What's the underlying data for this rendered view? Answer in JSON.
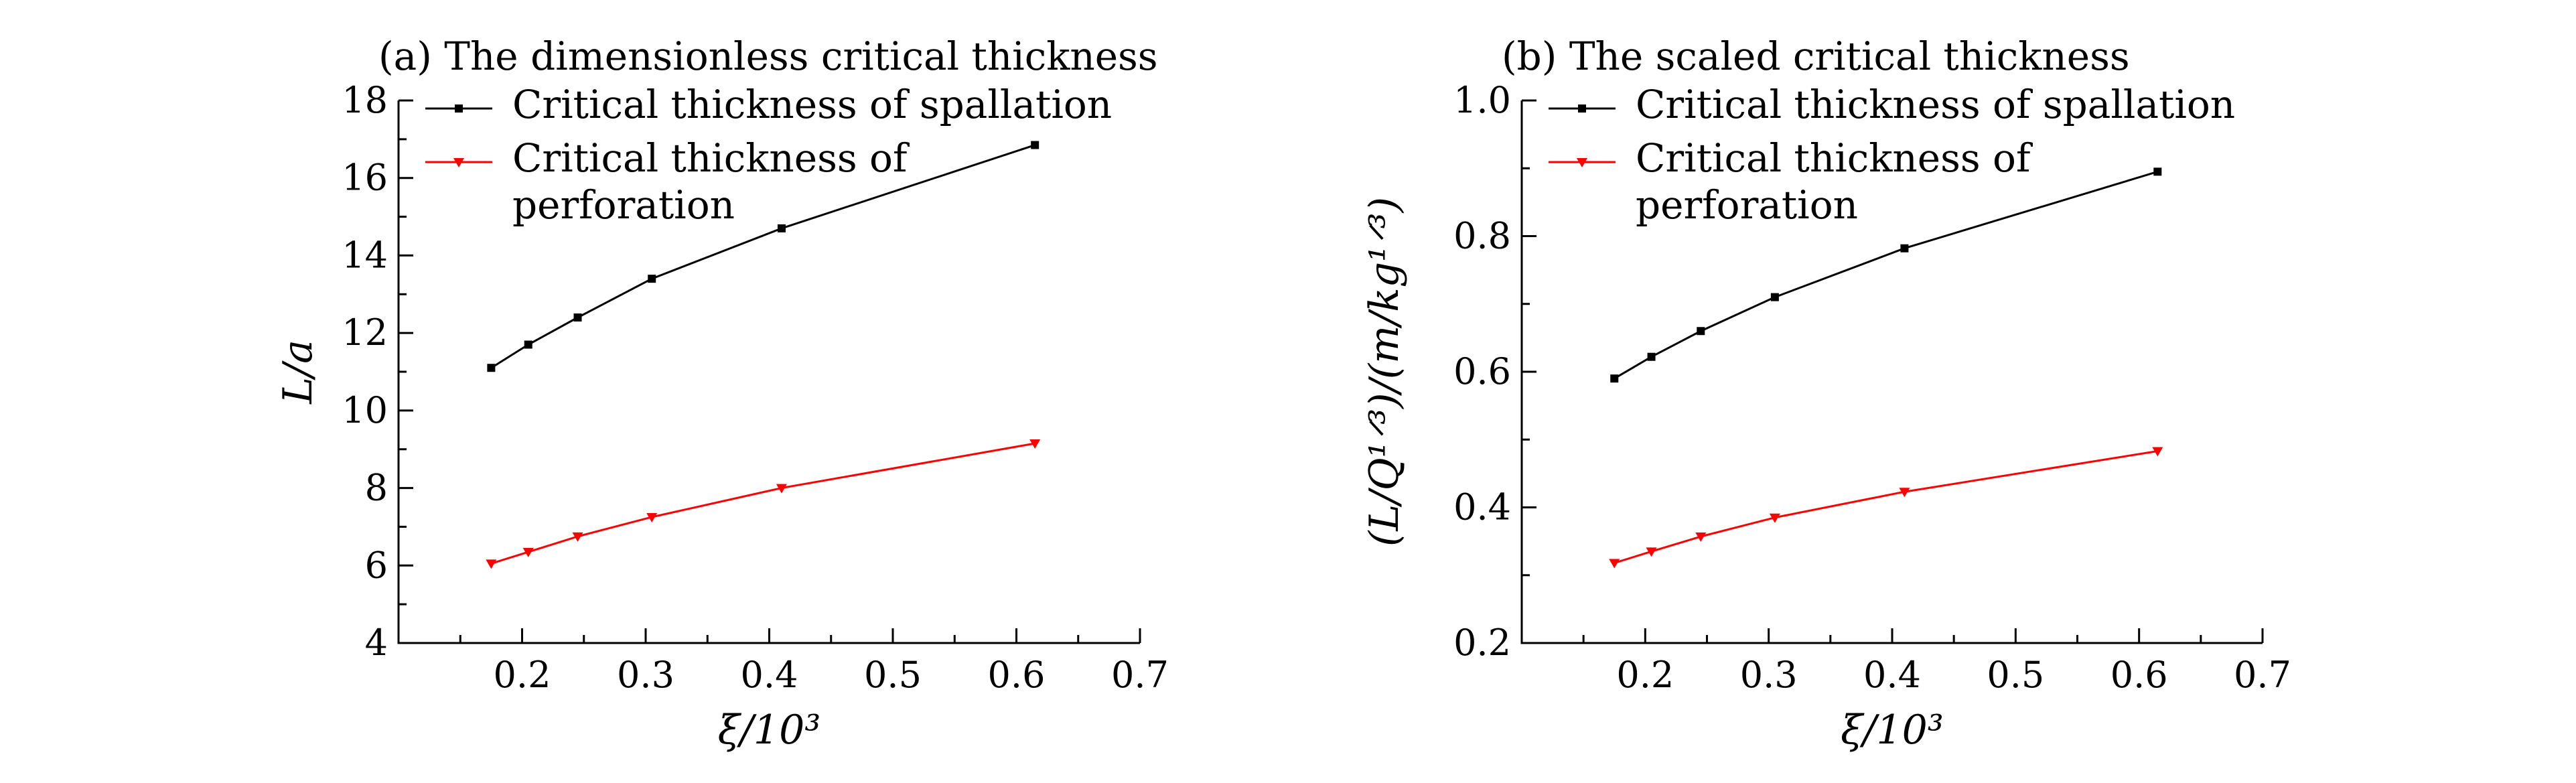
{
  "chart_data": [
    {
      "type": "line",
      "title": "(a) The dimensionless critical thickness",
      "xlabel": "ξ/10³",
      "ylabel": "L/a",
      "xlim": [
        0.1,
        0.7
      ],
      "ylim": [
        4,
        18
      ],
      "xticks": [
        0.2,
        0.3,
        0.4,
        0.5,
        0.6,
        0.7
      ],
      "xtick_labels": [
        "0.2",
        "0.3",
        "0.4",
        "0.5",
        "0.6",
        "0.7"
      ],
      "yticks": [
        4,
        6,
        8,
        10,
        12,
        14,
        16,
        18
      ],
      "ytick_labels": [
        "4",
        "6",
        "8",
        "10",
        "12",
        "14",
        "16",
        "18"
      ],
      "grid": false,
      "legend_position": "top-left",
      "series": [
        {
          "name": "Critical thickness of spallation",
          "color": "#000000",
          "marker": "square",
          "x": [
            0.175,
            0.205,
            0.245,
            0.305,
            0.41,
            0.615
          ],
          "y": [
            11.1,
            11.7,
            12.4,
            13.4,
            14.7,
            16.85
          ]
        },
        {
          "name": "Critical thickness of perforation",
          "name_lines": [
            "Critical thickness of",
            "perforation"
          ],
          "color": "#ff0000",
          "marker": "triangle-down",
          "x": [
            0.175,
            0.205,
            0.245,
            0.305,
            0.41,
            0.615
          ],
          "y": [
            6.05,
            6.35,
            6.75,
            7.25,
            8.0,
            9.15
          ]
        }
      ]
    },
    {
      "type": "line",
      "title": "(b) The scaled critical thickness",
      "xlabel": "ξ/10³",
      "ylabel": "(L/Q¹ᐟ³)/(m/kg¹ᐟ³)",
      "xlim": [
        0.1,
        0.7
      ],
      "ylim": [
        0.2,
        1.0
      ],
      "xticks": [
        0.2,
        0.3,
        0.4,
        0.5,
        0.6,
        0.7
      ],
      "xtick_labels": [
        "0.2",
        "0.3",
        "0.4",
        "0.5",
        "0.6",
        "0.7"
      ],
      "yticks": [
        0.2,
        0.4,
        0.6,
        0.8,
        1.0
      ],
      "ytick_labels": [
        "0.2",
        "0.4",
        "0.6",
        "0.8",
        "1.0"
      ],
      "grid": false,
      "legend_position": "top-left",
      "series": [
        {
          "name": "Critical thickness of spallation",
          "color": "#000000",
          "marker": "square",
          "x": [
            0.175,
            0.205,
            0.245,
            0.305,
            0.41,
            0.615
          ],
          "y": [
            0.59,
            0.622,
            0.66,
            0.71,
            0.782,
            0.895
          ]
        },
        {
          "name": "Critical thickness of perforation",
          "name_lines": [
            "Critical thickness of",
            "perforation"
          ],
          "color": "#ff0000",
          "marker": "triangle-down",
          "x": [
            0.175,
            0.205,
            0.245,
            0.305,
            0.41,
            0.615
          ],
          "y": [
            0.318,
            0.335,
            0.357,
            0.385,
            0.423,
            0.483
          ]
        }
      ]
    }
  ]
}
